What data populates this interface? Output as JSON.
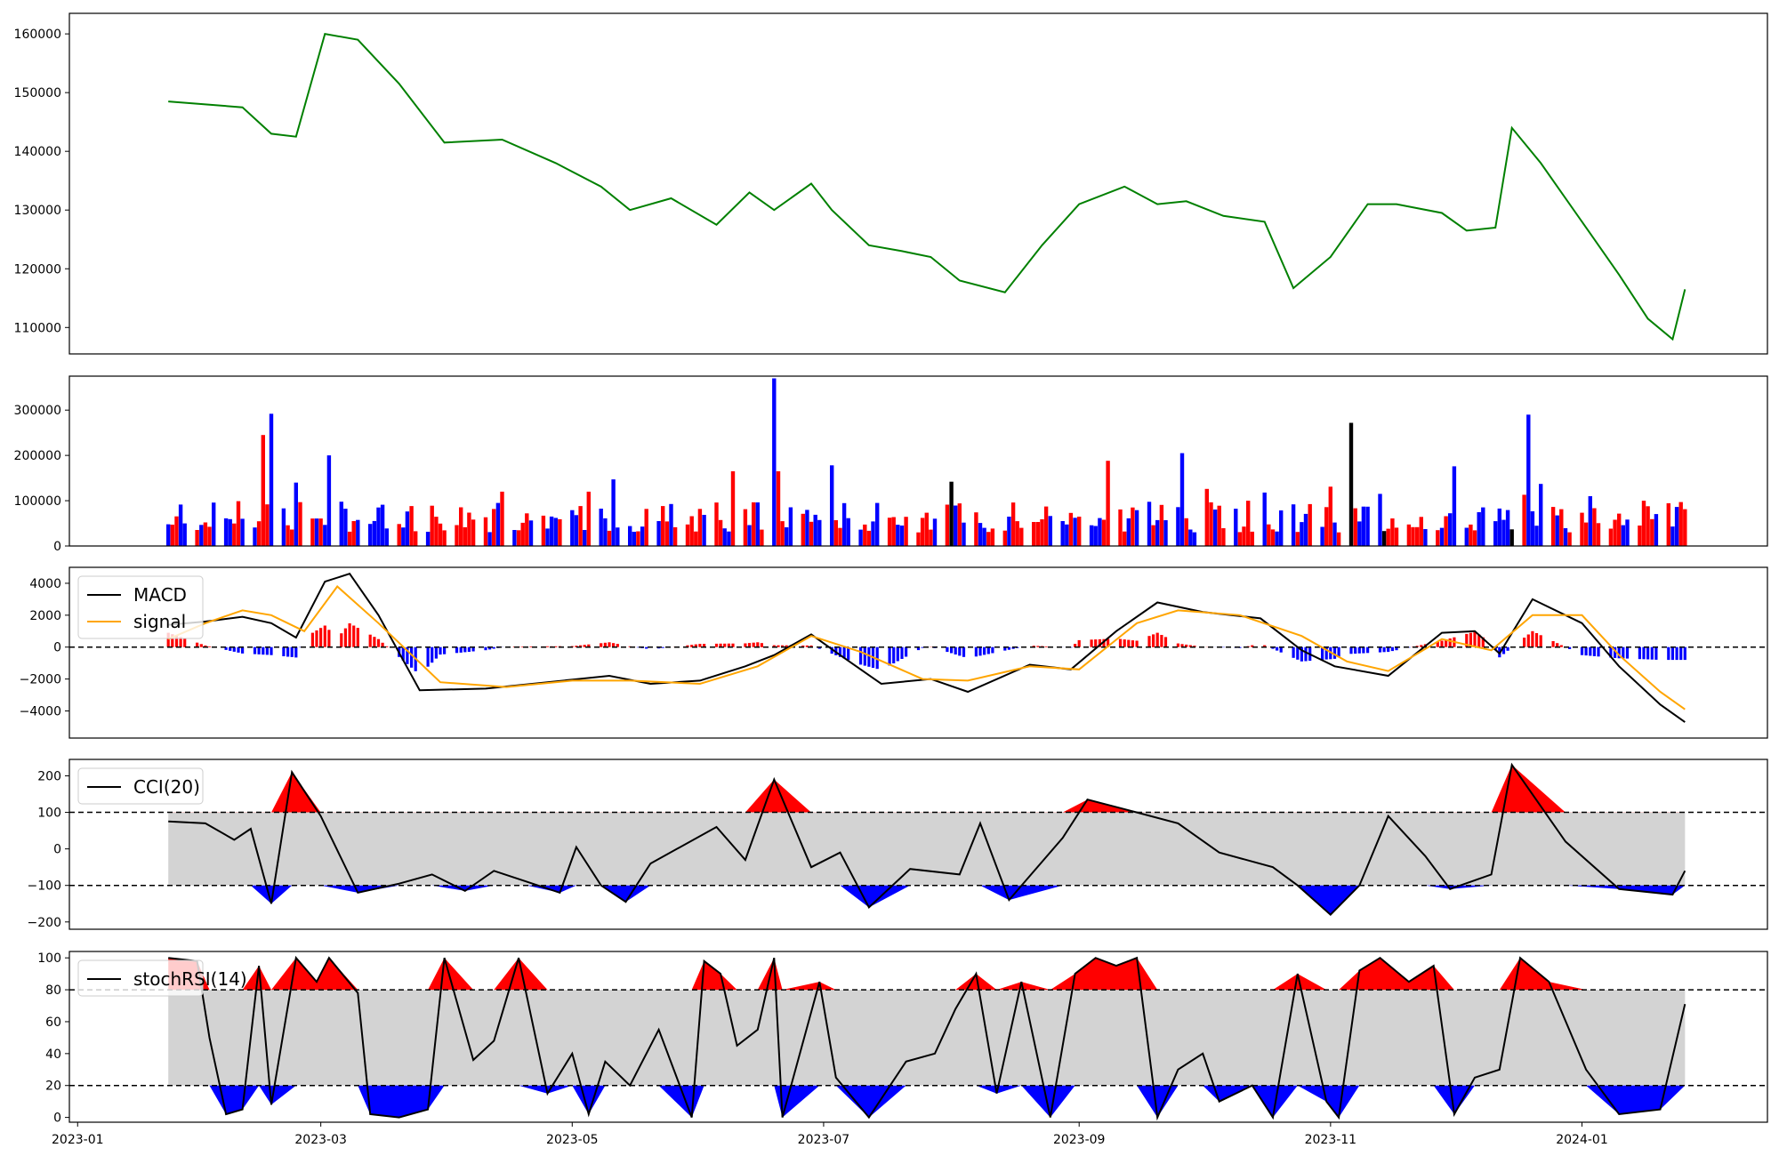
{
  "chart_data": [
    {
      "type": "line",
      "panel": "price",
      "y_ticks": [
        "110000",
        "120000",
        "130000",
        "140000",
        "150000",
        "160000"
      ],
      "ylim": [
        105500,
        163500
      ],
      "series": [
        {
          "color": "#008000",
          "x": [
            "2023-01-23",
            "2023-02-01",
            "2023-02-10",
            "2023-02-17",
            "2023-02-23",
            "2023-03-02",
            "2023-03-10",
            "2023-03-20",
            "2023-03-31",
            "2023-04-14",
            "2023-04-27",
            "2023-05-08",
            "2023-05-15",
            "2023-05-25",
            "2023-06-05",
            "2023-06-13",
            "2023-06-19",
            "2023-06-28",
            "2023-07-03",
            "2023-07-12",
            "2023-07-20",
            "2023-07-27",
            "2023-08-03",
            "2023-08-14",
            "2023-08-23",
            "2023-09-01",
            "2023-09-12",
            "2023-09-20",
            "2023-09-27",
            "2023-10-06",
            "2023-10-16",
            "2023-10-23",
            "2023-11-01",
            "2023-11-10",
            "2023-11-17",
            "2023-11-28",
            "2023-12-04",
            "2023-12-11",
            "2023-12-15",
            "2023-12-22",
            "2024-01-03",
            "2024-01-10",
            "2024-01-17",
            "2024-01-23",
            "2024-01-26"
          ],
          "y": [
            148500,
            148000,
            147500,
            143000,
            142500,
            160000,
            159000,
            151500,
            141500,
            142000,
            138000,
            134000,
            130000,
            132000,
            127500,
            133000,
            130000,
            134500,
            130000,
            124000,
            123000,
            122000,
            118000,
            116000,
            124000,
            131000,
            134000,
            131000,
            131500,
            129000,
            128000,
            116700,
            122000,
            131000,
            131000,
            129500,
            126500,
            127000,
            144000,
            138000,
            126000,
            119000,
            111500,
            108000,
            116500
          ]
        }
      ]
    },
    {
      "type": "bar",
      "panel": "volume",
      "y_ticks": [
        "0",
        "100000",
        "200000",
        "300000"
      ],
      "ylim": [
        0,
        375000
      ],
      "up_color": "#ff0000",
      "down_color": "#0000ff",
      "flat_color": "#000000",
      "x": [
        "2023-01-23",
        "2023-02-01",
        "2023-02-10",
        "2023-02-15",
        "2023-02-17",
        "2023-02-23",
        "2023-03-03",
        "2023-03-15",
        "2023-04-14",
        "2023-05-05",
        "2023-05-11",
        "2023-05-22",
        "2023-06-05",
        "2023-06-09",
        "2023-06-19",
        "2023-06-20",
        "2023-07-03",
        "2023-07-14",
        "2023-08-01",
        "2023-09-08",
        "2023-09-26",
        "2023-10-02",
        "2023-10-16",
        "2023-11-01",
        "2023-11-06",
        "2023-11-13",
        "2023-11-28",
        "2023-12-01",
        "2023-12-18",
        "2023-12-19",
        "2023-12-22",
        "2024-01-03",
        "2024-01-16",
        "2024-01-25"
      ],
      "values": [
        48000,
        52000,
        60000,
        245000,
        292000,
        140000,
        200000,
        85000,
        120000,
        120000,
        147000,
        55000,
        96000,
        165000,
        370000,
        165000,
        178000,
        95000,
        142000,
        188000,
        205000,
        126000,
        118000,
        131000,
        272000,
        115000,
        40000,
        176000,
        113000,
        290000,
        137000,
        110000,
        100000,
        97000
      ]
    },
    {
      "type": "line",
      "panel": "macd",
      "y_ticks": [
        "−4000",
        "−2000",
        "0",
        "2000",
        "4000"
      ],
      "ylim": [
        -5700,
        5000
      ],
      "hist_up_color": "#ff0000",
      "hist_down_color": "#0000ff",
      "zero_line": "dashed",
      "legend": "upper-left",
      "series": [
        {
          "name": "MACD",
          "color": "#000000",
          "x": [
            "2023-01-23",
            "2023-02-01",
            "2023-02-10",
            "2023-02-17",
            "2023-02-23",
            "2023-03-02",
            "2023-03-08",
            "2023-03-15",
            "2023-03-25",
            "2023-04-10",
            "2023-04-25",
            "2023-05-10",
            "2023-05-20",
            "2023-06-01",
            "2023-06-12",
            "2023-06-19",
            "2023-06-28",
            "2023-07-05",
            "2023-07-15",
            "2023-07-27",
            "2023-08-05",
            "2023-08-20",
            "2023-08-30",
            "2023-09-10",
            "2023-09-20",
            "2023-10-01",
            "2023-10-15",
            "2023-10-25",
            "2023-11-02",
            "2023-11-15",
            "2023-11-28",
            "2023-12-06",
            "2023-12-12",
            "2023-12-20",
            "2024-01-01",
            "2024-01-10",
            "2024-01-20",
            "2024-01-26"
          ],
          "y": [
            1400,
            1600,
            1900,
            1500,
            600,
            4100,
            4600,
            2000,
            -2700,
            -2600,
            -2200,
            -1800,
            -2300,
            -2100,
            -1200,
            -500,
            800,
            -500,
            -2300,
            -2000,
            -2800,
            -1100,
            -1400,
            1000,
            2800,
            2200,
            1800,
            -200,
            -1200,
            -1800,
            900,
            1000,
            -400,
            3000,
            1500,
            -1200,
            -3600,
            -4700
          ]
        },
        {
          "name": "signal",
          "color": "#ffa500",
          "x": [
            "2023-01-23",
            "2023-02-01",
            "2023-02-10",
            "2023-02-17",
            "2023-02-25",
            "2023-03-05",
            "2023-03-15",
            "2023-03-30",
            "2023-04-15",
            "2023-05-01",
            "2023-05-15",
            "2023-06-01",
            "2023-06-15",
            "2023-06-28",
            "2023-07-10",
            "2023-07-25",
            "2023-08-05",
            "2023-08-20",
            "2023-09-01",
            "2023-09-15",
            "2023-09-25",
            "2023-10-10",
            "2023-10-25",
            "2023-11-05",
            "2023-11-15",
            "2023-11-28",
            "2023-12-10",
            "2023-12-20",
            "2024-01-01",
            "2024-01-10",
            "2024-01-20",
            "2024-01-26"
          ],
          "y": [
            500,
            1500,
            2300,
            2000,
            1000,
            3800,
            1500,
            -2200,
            -2500,
            -2100,
            -2100,
            -2300,
            -1200,
            700,
            -300,
            -2000,
            -2100,
            -1200,
            -1400,
            1500,
            2300,
            2000,
            700,
            -900,
            -1500,
            500,
            -200,
            2000,
            2000,
            -500,
            -2800,
            -3900
          ]
        }
      ]
    },
    {
      "type": "line",
      "panel": "cci",
      "y_ticks": [
        "−200",
        "−100",
        "0",
        "100",
        "200"
      ],
      "ylim": [
        -220,
        245
      ],
      "band": [
        -100,
        100
      ],
      "band_color": "#d3d3d3",
      "above_fill": "#ff0000",
      "below_fill": "#0000ff",
      "legend": "upper-left",
      "series": [
        {
          "name": "CCI(20)",
          "color": "#000000",
          "x": [
            "2023-01-23",
            "2023-02-01",
            "2023-02-08",
            "2023-02-12",
            "2023-02-17",
            "2023-02-22",
            "2023-03-01",
            "2023-03-10",
            "2023-03-20",
            "2023-03-28",
            "2023-04-05",
            "2023-04-12",
            "2023-04-20",
            "2023-04-28",
            "2023-05-02",
            "2023-05-08",
            "2023-05-14",
            "2023-05-20",
            "2023-06-05",
            "2023-06-12",
            "2023-06-19",
            "2023-06-28",
            "2023-07-05",
            "2023-07-12",
            "2023-07-22",
            "2023-08-03",
            "2023-08-08",
            "2023-08-15",
            "2023-08-28",
            "2023-09-03",
            "2023-09-15",
            "2023-09-25",
            "2023-10-05",
            "2023-10-18",
            "2023-10-24",
            "2023-11-01",
            "2023-11-08",
            "2023-11-15",
            "2023-11-24",
            "2023-11-30",
            "2023-12-10",
            "2023-12-15",
            "2023-12-28",
            "2024-01-10",
            "2024-01-23",
            "2024-01-26"
          ],
          "y": [
            75,
            70,
            25,
            55,
            -150,
            210,
            90,
            -120,
            -95,
            -70,
            -115,
            -60,
            -90,
            -120,
            5,
            -100,
            -145,
            -40,
            60,
            -30,
            190,
            -50,
            -10,
            -160,
            -55,
            -70,
            70,
            -140,
            30,
            135,
            100,
            70,
            -10,
            -50,
            -100,
            -180,
            -100,
            90,
            -20,
            -110,
            -70,
            230,
            20,
            -110,
            -125,
            -60
          ]
        }
      ]
    },
    {
      "type": "line",
      "panel": "stochrsi",
      "y_ticks": [
        "0",
        "20",
        "40",
        "60",
        "80",
        "100"
      ],
      "ylim": [
        -3,
        104
      ],
      "band": [
        20,
        80
      ],
      "band_color": "#d3d3d3",
      "above_fill": "#ff0000",
      "below_fill": "#0000ff",
      "legend": "upper-left",
      "x_ticks": [
        "2023-01",
        "2023-03",
        "2023-05",
        "2023-07",
        "2023-09",
        "2023-11",
        "2024-01"
      ],
      "xlim": [
        "2022-12-30",
        "2024-02-15"
      ],
      "series": [
        {
          "name": "stochRSI(14)",
          "color": "#000000",
          "x": [
            "2023-01-23",
            "2023-01-30",
            "2023-02-02",
            "2023-02-06",
            "2023-02-10",
            "2023-02-14",
            "2023-02-17",
            "2023-02-23",
            "2023-02-28",
            "2023-03-03",
            "2023-03-10",
            "2023-03-13",
            "2023-03-20",
            "2023-03-27",
            "2023-03-31",
            "2023-04-07",
            "2023-04-12",
            "2023-04-18",
            "2023-04-25",
            "2023-05-01",
            "2023-05-05",
            "2023-05-09",
            "2023-05-15",
            "2023-05-22",
            "2023-05-30",
            "2023-06-02",
            "2023-06-06",
            "2023-06-10",
            "2023-06-15",
            "2023-06-19",
            "2023-06-21",
            "2023-06-30",
            "2023-07-04",
            "2023-07-12",
            "2023-07-21",
            "2023-07-28",
            "2023-08-02",
            "2023-08-07",
            "2023-08-12",
            "2023-08-18",
            "2023-08-25",
            "2023-08-31",
            "2023-09-05",
            "2023-09-10",
            "2023-09-15",
            "2023-09-20",
            "2023-09-25",
            "2023-10-01",
            "2023-10-05",
            "2023-10-13",
            "2023-10-18",
            "2023-10-24",
            "2023-10-31",
            "2023-11-03",
            "2023-11-08",
            "2023-11-13",
            "2023-11-20",
            "2023-11-26",
            "2023-12-01",
            "2023-12-06",
            "2023-12-12",
            "2023-12-17",
            "2023-12-24",
            "2024-01-02",
            "2024-01-10",
            "2024-01-20",
            "2024-01-26"
          ],
          "y": [
            100,
            98,
            50,
            2,
            5,
            95,
            8,
            100,
            85,
            100,
            78,
            2,
            0,
            5,
            100,
            36,
            48,
            100,
            15,
            40,
            2,
            35,
            20,
            55,
            0,
            98,
            90,
            45,
            55,
            100,
            0,
            85,
            25,
            0,
            35,
            40,
            68,
            90,
            15,
            85,
            0,
            90,
            100,
            95,
            100,
            0,
            30,
            40,
            10,
            20,
            0,
            90,
            10,
            0,
            92,
            100,
            85,
            95,
            2,
            25,
            30,
            100,
            85,
            30,
            2,
            5,
            71
          ]
        }
      ]
    }
  ]
}
